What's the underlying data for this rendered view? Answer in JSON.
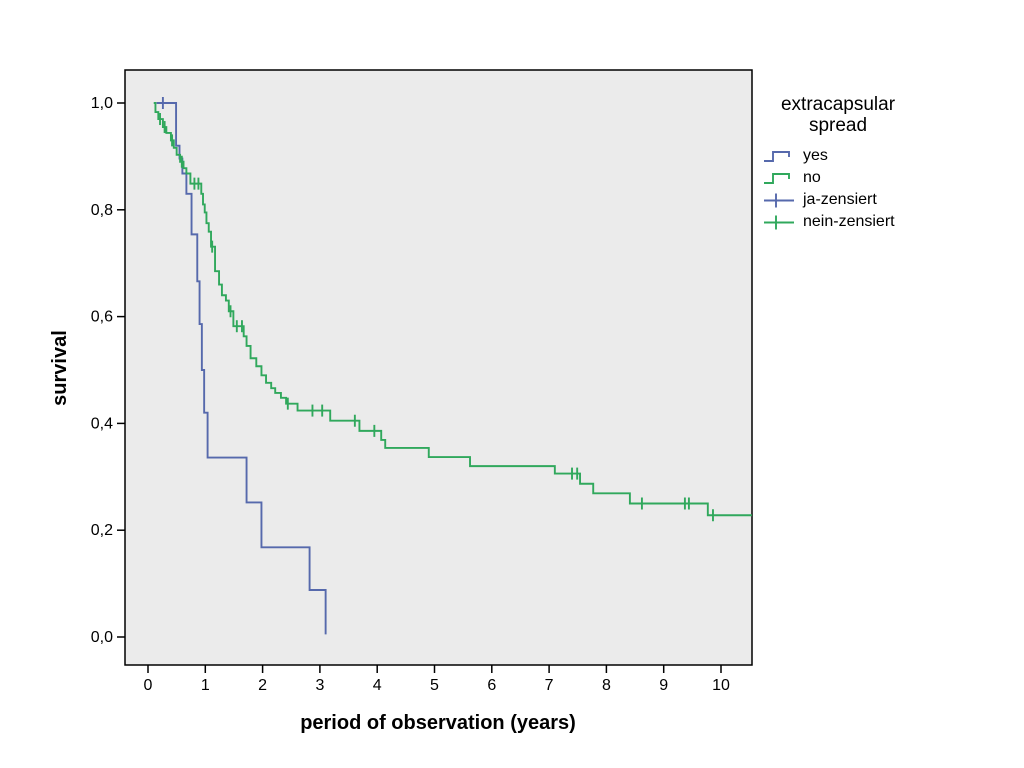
{
  "colors": {
    "page_bg": "#ffffff",
    "plot_bg": "#ebebeb",
    "axis": "#000000",
    "text": "#000000",
    "series_yes_blue": "#5669ac",
    "series_no_green": "#30a85c"
  },
  "legend": {
    "title_lines": [
      "extracapsular",
      "spread"
    ],
    "items": [
      {
        "label": "yes",
        "color": "#5669ac",
        "marker": "step"
      },
      {
        "label": "no",
        "color": "#30a85c",
        "marker": "step"
      },
      {
        "label": "ja-zensiert",
        "color": "#5669ac",
        "marker": "plus"
      },
      {
        "label": "nein-zensiert",
        "color": "#30a85c",
        "marker": "plus"
      }
    ]
  },
  "chart_data": {
    "type": "line",
    "subtype": "kaplan-meier-step",
    "title": "",
    "xlabel": "period of observation (years)",
    "ylabel": "survival",
    "grid": false,
    "legend_position": "right",
    "xlim": [
      -0.4,
      10.54
    ],
    "ylim": [
      -0.052,
      1.062
    ],
    "x_ticks": [
      0,
      1,
      2,
      3,
      4,
      5,
      6,
      7,
      8,
      9,
      10
    ],
    "x_tick_labels": [
      "0",
      "1",
      "2",
      "3",
      "4",
      "5",
      "6",
      "7",
      "8",
      "9",
      "10"
    ],
    "y_ticks": [
      0.0,
      0.2,
      0.4,
      0.6,
      0.8,
      1.0
    ],
    "y_tick_labels": [
      "0,0",
      "0,2",
      "0,4",
      "0,6",
      "0,8",
      "1,0"
    ],
    "series": [
      {
        "name": "yes",
        "color": "#5669ac",
        "end": 3.1,
        "points": [
          [
            0.15,
            1.0
          ],
          [
            0.49,
            0.92
          ],
          [
            0.55,
            0.896
          ],
          [
            0.6,
            0.868
          ],
          [
            0.67,
            0.83
          ],
          [
            0.76,
            0.754
          ],
          [
            0.86,
            0.666
          ],
          [
            0.9,
            0.586
          ],
          [
            0.94,
            0.5
          ],
          [
            0.98,
            0.42
          ],
          [
            1.04,
            0.336
          ],
          [
            1.72,
            0.252
          ],
          [
            1.98,
            0.168
          ],
          [
            2.82,
            0.088
          ],
          [
            3.1,
            0.005
          ]
        ],
        "censors": [
          [
            0.26,
            1.0
          ]
        ]
      },
      {
        "name": "no",
        "color": "#30a85c",
        "end": 10.54,
        "points": [
          [
            0.1,
            1.0
          ],
          [
            0.13,
            0.983
          ],
          [
            0.18,
            0.97
          ],
          [
            0.26,
            0.955
          ],
          [
            0.32,
            0.944
          ],
          [
            0.4,
            0.93
          ],
          [
            0.45,
            0.916
          ],
          [
            0.5,
            0.903
          ],
          [
            0.56,
            0.89
          ],
          [
            0.62,
            0.878
          ],
          [
            0.67,
            0.868
          ],
          [
            0.74,
            0.849
          ],
          [
            0.93,
            0.83
          ],
          [
            0.96,
            0.81
          ],
          [
            0.99,
            0.795
          ],
          [
            1.02,
            0.775
          ],
          [
            1.06,
            0.759
          ],
          [
            1.1,
            0.731
          ],
          [
            1.17,
            0.685
          ],
          [
            1.24,
            0.66
          ],
          [
            1.29,
            0.64
          ],
          [
            1.36,
            0.63
          ],
          [
            1.41,
            0.61
          ],
          [
            1.49,
            0.582
          ],
          [
            1.67,
            0.563
          ],
          [
            1.72,
            0.545
          ],
          [
            1.79,
            0.522
          ],
          [
            1.89,
            0.507
          ],
          [
            1.98,
            0.49
          ],
          [
            2.06,
            0.476
          ],
          [
            2.15,
            0.466
          ],
          [
            2.22,
            0.457
          ],
          [
            2.32,
            0.448
          ],
          [
            2.41,
            0.437
          ],
          [
            2.61,
            0.424
          ],
          [
            3.18,
            0.405
          ],
          [
            3.69,
            0.386
          ],
          [
            4.07,
            0.369
          ],
          [
            4.14,
            0.354
          ],
          [
            4.9,
            0.337
          ],
          [
            5.62,
            0.32
          ],
          [
            7.1,
            0.306
          ],
          [
            7.54,
            0.287
          ],
          [
            7.77,
            0.269
          ],
          [
            8.41,
            0.25
          ],
          [
            9.77,
            0.228
          ]
        ],
        "censors": [
          [
            0.21,
            0.97
          ],
          [
            0.29,
            0.955
          ],
          [
            0.42,
            0.93
          ],
          [
            0.59,
            0.89
          ],
          [
            0.81,
            0.849
          ],
          [
            0.88,
            0.849
          ],
          [
            1.12,
            0.731
          ],
          [
            1.44,
            0.61
          ],
          [
            1.55,
            0.582
          ],
          [
            1.64,
            0.582
          ],
          [
            2.44,
            0.437
          ],
          [
            2.87,
            0.424
          ],
          [
            3.04,
            0.424
          ],
          [
            3.61,
            0.405
          ],
          [
            3.95,
            0.386
          ],
          [
            7.4,
            0.306
          ],
          [
            7.49,
            0.306
          ],
          [
            8.62,
            0.25
          ],
          [
            9.37,
            0.25
          ],
          [
            9.44,
            0.25
          ],
          [
            9.86,
            0.228
          ]
        ]
      }
    ]
  }
}
